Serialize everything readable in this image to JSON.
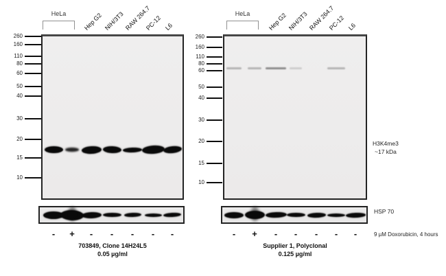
{
  "figure_type": "western-blot-antibody-comparison",
  "mw_markers": [
    "260",
    "160",
    "110",
    "80",
    "60",
    "50",
    "40",
    "30",
    "20",
    "15",
    "10"
  ],
  "lanes": {
    "group_label": "HeLa",
    "labels": [
      "Hep G2",
      "NIH/3T3",
      "RAW 264.7",
      "PC-12",
      "L6"
    ]
  },
  "treatment": {
    "signs": [
      "-",
      "+",
      "-",
      "-",
      "-",
      "-",
      "-"
    ],
    "note": "9 µM Doxorubicin, 4 hours"
  },
  "annotations": {
    "target_line1": "H3K4me3",
    "target_line2": "~17 kDa",
    "loading_control": "HSP 70"
  },
  "panels": [
    {
      "side": "left",
      "caption_line1": "703849, Clone 14H24L5",
      "caption_line2": "0.05 µg/ml",
      "h3k4me3_bands": [
        "strong",
        "weak",
        "strong",
        "strong",
        "strong",
        "strong",
        "strong"
      ],
      "nonspecific_bands_60kda": [
        "none",
        "none",
        "none",
        "none",
        "none",
        "none",
        "none"
      ],
      "hsp70_bands": [
        "strong",
        "very-strong",
        "strong",
        "medium",
        "medium",
        "medium",
        "medium"
      ]
    },
    {
      "side": "right",
      "caption_line1": "Supplier 1, Polyclonal",
      "caption_line2": "0.125 µg/ml",
      "h3k4me3_bands": [
        "none",
        "none",
        "none",
        "none",
        "none",
        "none",
        "none"
      ],
      "nonspecific_bands_60kda": [
        "faint",
        "faint",
        "moderate",
        "very-faint",
        "none",
        "faint",
        "none"
      ],
      "hsp70_bands": [
        "strong",
        "very-strong",
        "strong",
        "medium",
        "medium",
        "medium",
        "medium"
      ]
    }
  ]
}
